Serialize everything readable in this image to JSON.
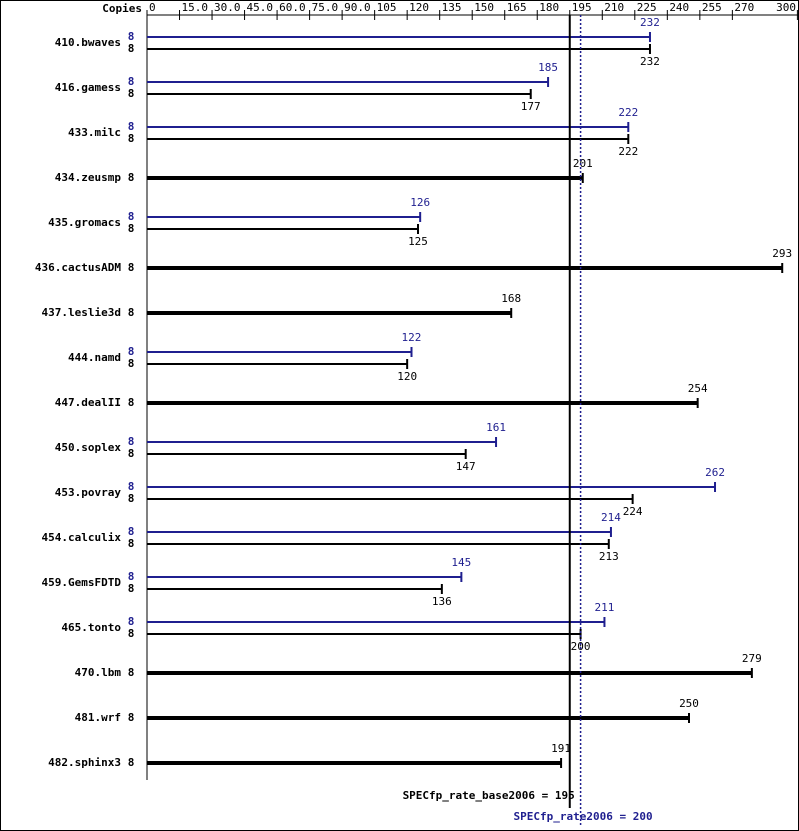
{
  "chart_data": {
    "type": "bar",
    "axis_label": "Copies",
    "categories": [
      "410.bwaves",
      "416.gamess",
      "433.milc",
      "434.zeusmp",
      "435.gromacs",
      "436.cactusADM",
      "437.leslie3d",
      "444.namd",
      "447.dealII",
      "450.soplex",
      "453.povray",
      "454.calculix",
      "459.GemsFDTD",
      "465.tonto",
      "470.lbm",
      "481.wrf",
      "482.sphinx3"
    ],
    "series": [
      {
        "color": "#1f1f8f",
        "values": [
          232,
          185,
          222,
          null,
          126,
          null,
          null,
          122,
          null,
          161,
          262,
          214,
          145,
          211,
          null,
          null,
          null
        ],
        "copies": [
          8,
          8,
          8,
          null,
          8,
          null,
          null,
          8,
          null,
          8,
          8,
          8,
          8,
          8,
          null,
          null,
          null
        ]
      },
      {
        "color": "#000000",
        "values": [
          232,
          177,
          222,
          201,
          125,
          293,
          168,
          120,
          254,
          147,
          224,
          213,
          136,
          200,
          279,
          250,
          191
        ],
        "copies": [
          8,
          8,
          8,
          8,
          8,
          8,
          8,
          8,
          8,
          8,
          8,
          8,
          8,
          8,
          8,
          8,
          8
        ]
      }
    ],
    "xlim": [
      0,
      300
    ],
    "xticks": [
      0,
      {
        "value": 15,
        "label": "15.0"
      },
      {
        "value": 30,
        "label": "30.0"
      },
      {
        "value": 45,
        "label": "45.0"
      },
      {
        "value": 60,
        "label": "60.0"
      },
      {
        "value": 75,
        "label": "75.0"
      },
      {
        "value": 90,
        "label": "90.0"
      },
      105,
      120,
      135,
      150,
      165,
      180,
      195,
      210,
      225,
      240,
      255,
      270,
      300
    ],
    "reference_lines": [
      {
        "value": 195,
        "label": "SPECfp_rate_base2006 = 195",
        "color": "#000000",
        "style": "solid"
      },
      {
        "value": 200,
        "label": "SPECfp_rate2006 = 200",
        "color": "#1f1f8f",
        "style": "dotted"
      }
    ]
  }
}
